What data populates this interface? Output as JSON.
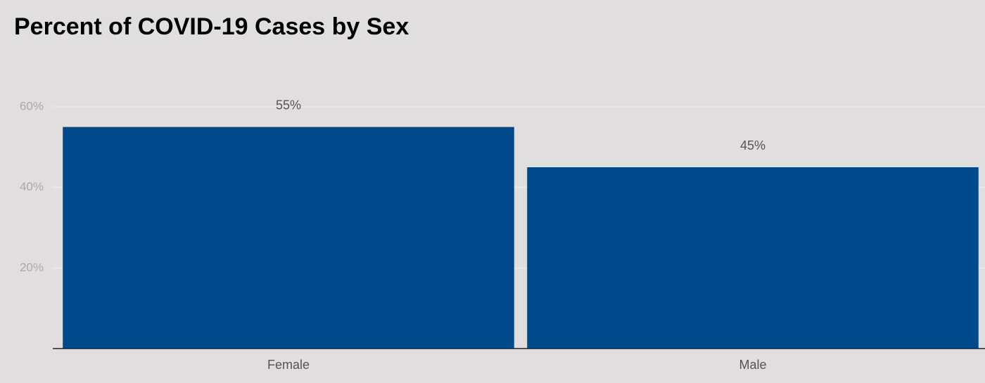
{
  "chart_data": {
    "type": "bar",
    "title": "Percent of COVID-19 Cases by Sex",
    "categories": [
      "Female",
      "Male"
    ],
    "values": [
      55,
      45
    ],
    "value_labels": [
      "55%",
      "45%"
    ],
    "color": "#004a8b",
    "ylim": [
      0,
      60
    ],
    "yticks": [
      {
        "value": 20,
        "label": "20%"
      },
      {
        "value": 40,
        "label": "40%"
      },
      {
        "value": 60,
        "label": "60%"
      }
    ],
    "grid": true
  }
}
